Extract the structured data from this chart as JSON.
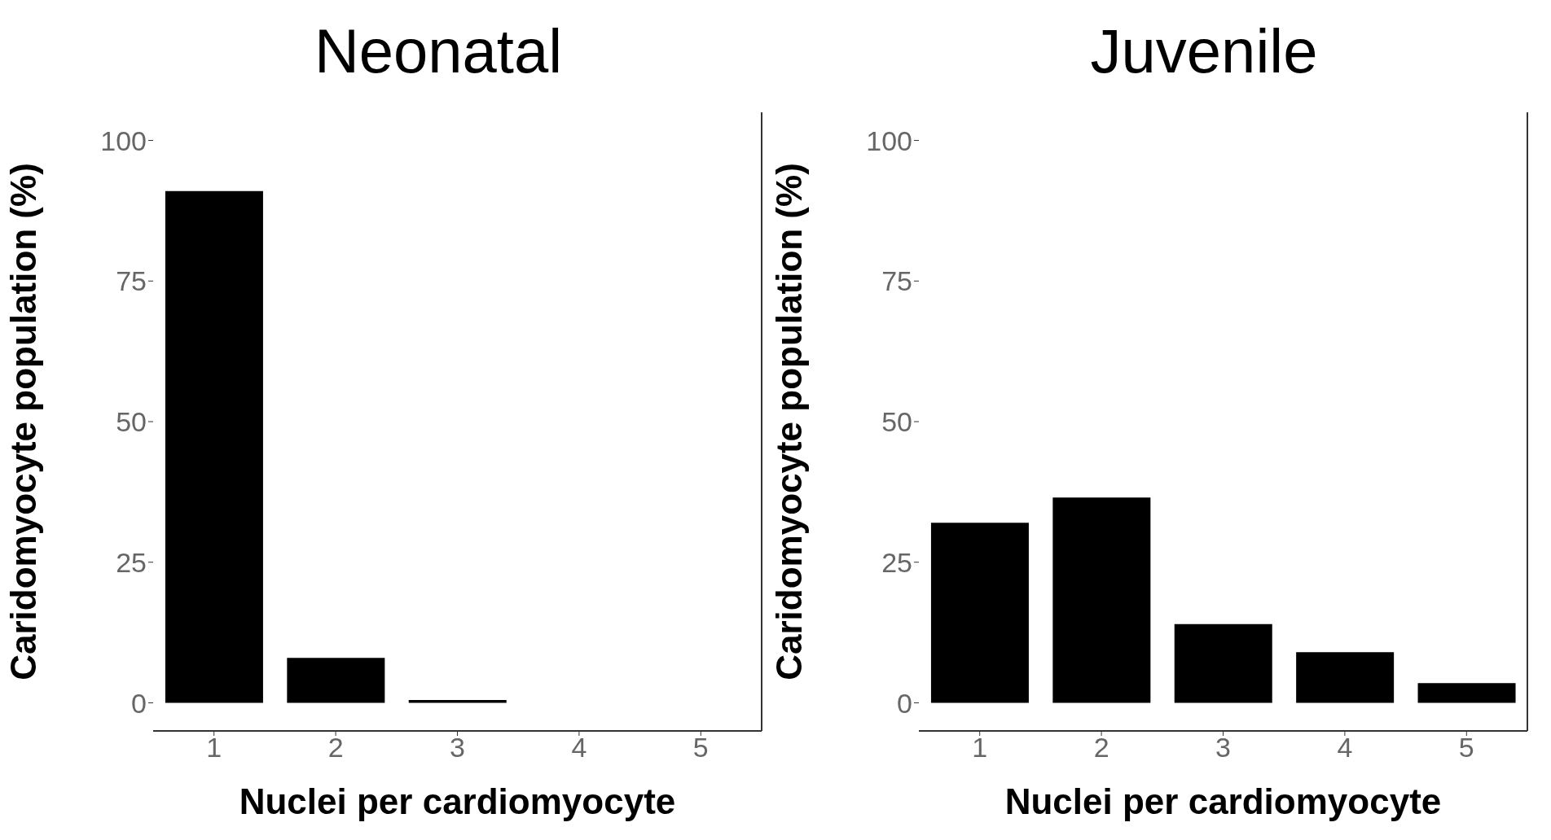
{
  "chart_data": [
    {
      "type": "bar",
      "title": "Neonatal",
      "xlabel": "Nuclei per cardiomyocyte",
      "ylabel": "Caridomyocyte population (%)",
      "categories": [
        "1",
        "2",
        "3",
        "4",
        "5"
      ],
      "values": [
        91,
        8,
        0.5,
        0,
        0
      ],
      "color": "#000000",
      "ylim": [
        -5,
        105
      ],
      "yticks": [
        0,
        25,
        50,
        75,
        100
      ],
      "grid": false
    },
    {
      "type": "bar",
      "title": "Juvenile",
      "xlabel": "Nuclei per cardiomyocyte",
      "ylabel": "Caridomyocyte population (%)",
      "categories": [
        "1",
        "2",
        "3",
        "4",
        "5"
      ],
      "values": [
        32,
        36.5,
        14,
        9,
        3.5
      ],
      "color": "#000000",
      "ylim": [
        -5,
        105
      ],
      "yticks": [
        0,
        25,
        50,
        75,
        100
      ],
      "grid": false
    }
  ]
}
